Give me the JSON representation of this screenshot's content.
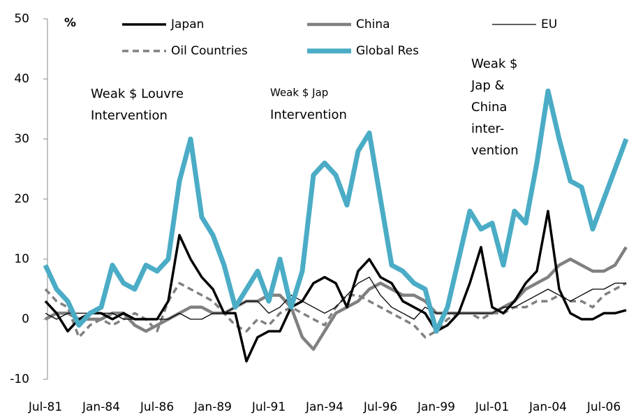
{
  "chart_data": {
    "type": "line",
    "y_label": "%",
    "annotations": [
      {
        "lines": [
          "Weak $ Louvre",
          "Intervention"
        ]
      },
      {
        "lines": [
          "Weak $ Jap",
          "Intervention"
        ]
      },
      {
        "lines": [
          "Weak $",
          "Jap &",
          "China",
          "inter-",
          "vention"
        ]
      }
    ],
    "categories": [
      "Jul-81",
      null,
      null,
      null,
      null,
      "Jan-84",
      null,
      null,
      null,
      null,
      "Jul-86",
      null,
      null,
      null,
      null,
      "Jan-89",
      null,
      null,
      null,
      null,
      "Jul-91",
      null,
      null,
      null,
      null,
      "Jan-94",
      null,
      null,
      null,
      null,
      "Jul-96",
      null,
      null,
      null,
      null,
      "Jan-99",
      null,
      null,
      null,
      null,
      "Jul-01",
      null,
      null,
      null,
      null,
      "Jan-04",
      null,
      null,
      null,
      null,
      "Jul-06",
      null,
      null
    ],
    "series": [
      {
        "name": "Japan",
        "color": "#000000",
        "values": [
          3,
          1,
          -2,
          0,
          1,
          1,
          0,
          1,
          0,
          0,
          0,
          3,
          14,
          10,
          7,
          5,
          1,
          1,
          -7,
          -3,
          -2,
          -2,
          2,
          3,
          6,
          7,
          6,
          2,
          8,
          10,
          7,
          6,
          3,
          2,
          1,
          -2,
          -1,
          1,
          6,
          12,
          2,
          1,
          3,
          6,
          8,
          18,
          5,
          1,
          0,
          0,
          1,
          1,
          1.5
        ]
      },
      {
        "name": "China",
        "color": "#808080",
        "values": [
          0,
          1,
          1,
          0,
          0,
          0,
          1,
          1,
          -1,
          -2,
          -1,
          0,
          1,
          2,
          2,
          1,
          1,
          2,
          3,
          3,
          4,
          4,
          2,
          -3,
          -5,
          -2,
          1,
          2,
          3,
          5,
          6,
          5,
          4,
          4,
          3,
          1,
          1,
          1,
          1,
          1,
          1,
          2,
          3,
          5,
          6,
          7,
          9,
          10,
          9,
          8,
          8,
          9,
          12
        ]
      },
      {
        "name": "EU",
        "color": "#000000",
        "values": [
          1,
          0,
          1,
          1,
          1,
          1,
          1,
          0,
          0,
          0,
          0,
          0,
          1,
          0,
          0,
          1,
          1,
          2,
          3,
          3,
          1,
          2,
          4,
          3,
          2,
          1,
          2,
          4,
          6,
          7,
          4,
          2,
          1,
          0,
          2,
          1,
          1,
          1,
          1,
          1,
          1,
          2,
          2,
          3,
          4,
          5,
          4,
          3,
          4,
          5,
          5,
          6,
          6
        ]
      },
      {
        "name": "Oil Countries",
        "color": "#808080",
        "values": [
          5,
          3,
          2,
          -3,
          -1,
          0,
          -1,
          0,
          1,
          0,
          -2,
          3,
          6,
          5,
          4,
          3,
          1,
          -1,
          -2,
          0,
          -1,
          1,
          2,
          1,
          0,
          -1,
          2,
          4,
          4,
          3,
          2,
          1,
          0,
          -1,
          -3,
          -2,
          0,
          1,
          1,
          0,
          1,
          1,
          2,
          2,
          3,
          3,
          4,
          3,
          3,
          2,
          4,
          5,
          6
        ]
      },
      {
        "name": "Global Res",
        "color": "#4bacc6",
        "values": [
          9,
          5,
          3,
          -1,
          1,
          2,
          9,
          6,
          5,
          9,
          8,
          10,
          23,
          30,
          17,
          14,
          9,
          2,
          5,
          8,
          3,
          10,
          2,
          8,
          24,
          26,
          24,
          19,
          28,
          31,
          20,
          9,
          8,
          6,
          5,
          -2,
          2,
          10,
          18,
          15,
          16,
          9,
          18,
          16,
          26,
          38,
          30,
          23,
          22,
          15,
          20,
          25,
          30
        ]
      }
    ],
    "ylim": [
      -10,
      50
    ],
    "yticks": [
      -10,
      0,
      10,
      20,
      30,
      40,
      50
    ]
  }
}
